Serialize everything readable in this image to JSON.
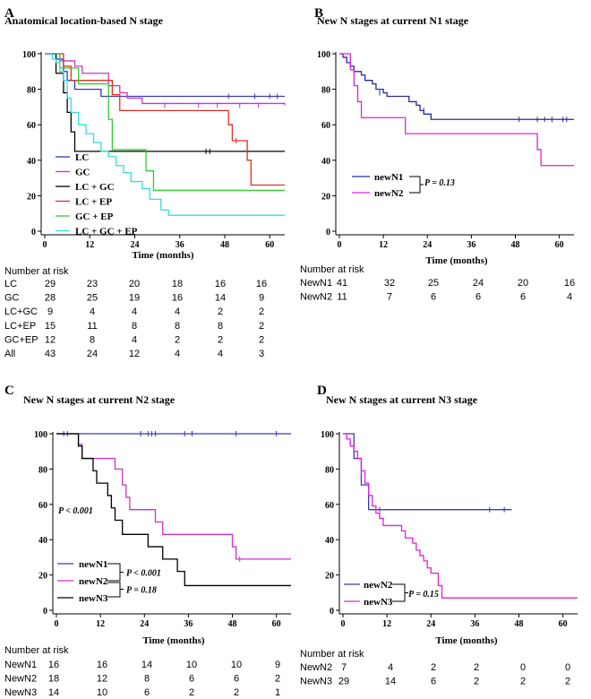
{
  "chart_data": [
    {
      "panel_letter": "A",
      "type": "line",
      "title": "Anatomical location-based N stage",
      "xlabel": "Time (months)",
      "ylabel": "",
      "xlim": [
        0,
        64
      ],
      "ylim": [
        0,
        100
      ],
      "xticks": [
        0,
        12,
        24,
        36,
        48,
        60
      ],
      "yticks": [
        0,
        20,
        40,
        60,
        80,
        100
      ],
      "legend": "bottom-left inside",
      "series": [
        {
          "name": "LC",
          "color": "#3a3ab0",
          "steps": [
            [
              0,
              100
            ],
            [
              3,
              97
            ],
            [
              5,
              90
            ],
            [
              6,
              85
            ],
            [
              8,
              80
            ],
            [
              15,
              76
            ],
            [
              64,
              76
            ]
          ],
          "censor": [
            [
              49,
              76
            ],
            [
              56,
              76
            ],
            [
              60,
              76
            ],
            [
              62,
              76
            ]
          ]
        },
        {
          "name": "GC",
          "color": "#cc33cc",
          "steps": [
            [
              0,
              100
            ],
            [
              4,
              96
            ],
            [
              8,
              93
            ],
            [
              10,
              89
            ],
            [
              17,
              82
            ],
            [
              20,
              78
            ],
            [
              22,
              75
            ],
            [
              26,
              72
            ],
            [
              64,
              71
            ]
          ],
          "censor": [
            [
              32,
              71
            ],
            [
              41,
              71
            ],
            [
              46,
              71
            ],
            [
              52,
              71
            ],
            [
              57,
              71
            ]
          ]
        },
        {
          "name": "LC + GC",
          "color": "#000000",
          "steps": [
            [
              0,
              100
            ],
            [
              3,
              89
            ],
            [
              5,
              78
            ],
            [
              6,
              67
            ],
            [
              7,
              56
            ],
            [
              8,
              45
            ],
            [
              64,
              45
            ]
          ],
          "censor": [
            [
              43,
              45
            ],
            [
              44,
              45
            ]
          ]
        },
        {
          "name": "LC + EP",
          "color": "#e03020",
          "steps": [
            [
              0,
              100
            ],
            [
              5,
              93
            ],
            [
              7,
              85
            ],
            [
              18,
              77
            ],
            [
              20,
              68
            ],
            [
              49,
              60
            ],
            [
              50,
              51
            ],
            [
              53,
              51
            ],
            [
              54,
              40
            ],
            [
              55,
              26
            ],
            [
              64,
              26
            ]
          ],
          "censor": [
            [
              51,
              51
            ]
          ]
        },
        {
          "name": "GC + EP",
          "color": "#33cc33",
          "steps": [
            [
              0,
              100
            ],
            [
              4,
              92
            ],
            [
              9,
              83
            ],
            [
              17,
              63
            ],
            [
              18,
              46
            ],
            [
              27,
              34
            ],
            [
              29,
              23
            ],
            [
              64,
              23
            ]
          ],
          "censor": []
        },
        {
          "name": "LC + GC +  EP",
          "color": "#33dddd",
          "steps": [
            [
              0,
              100
            ],
            [
              2,
              97
            ],
            [
              3,
              95
            ],
            [
              4,
              90
            ],
            [
              5,
              85
            ],
            [
              6,
              75
            ],
            [
              7,
              67
            ],
            [
              9,
              60
            ],
            [
              11,
              55
            ],
            [
              13,
              50
            ],
            [
              15,
              45
            ],
            [
              17,
              42
            ],
            [
              19,
              37
            ],
            [
              21,
              33
            ],
            [
              23,
              28
            ],
            [
              26,
              24
            ],
            [
              28,
              18
            ],
            [
              31,
              12
            ],
            [
              33,
              9
            ],
            [
              64,
              9
            ]
          ],
          "censor": []
        }
      ],
      "risk_table": {
        "header": "Number at risk",
        "times": [
          0,
          12,
          24,
          36,
          48,
          60
        ],
        "rows": [
          {
            "label": "LC",
            "values": [
              "29",
              "23",
              "20",
              "18",
              "16",
              "16"
            ]
          },
          {
            "label": "GC",
            "values": [
              "28",
              "25",
              "19",
              "16",
              "14",
              "9"
            ]
          },
          {
            "label": "LC+GC",
            "values": [
              "9",
              "4",
              "4",
              "4",
              "2",
              "2"
            ]
          },
          {
            "label": "LC+EP",
            "values": [
              "15",
              "11",
              "8",
              "8",
              "8",
              "2"
            ]
          },
          {
            "label": "GC+EP",
            "values": [
              "12",
              "8",
              "4",
              "2",
              "2",
              "2"
            ]
          },
          {
            "label": "All",
            "values": [
              "43",
              "24",
              "12",
              "4",
              "4",
              "3"
            ]
          }
        ]
      },
      "annotations": []
    },
    {
      "panel_letter": "B",
      "type": "line",
      "title": "New N stages at current N1 stage",
      "xlabel": "Time (months)",
      "ylabel": "",
      "xlim": [
        0,
        64
      ],
      "ylim": [
        0,
        100
      ],
      "xticks": [
        0,
        12,
        24,
        36,
        48,
        60
      ],
      "yticks": [
        0,
        20,
        40,
        60,
        80,
        100
      ],
      "legend": "middle-left inside",
      "series": [
        {
          "name": "newN1",
          "color": "#2a2a9a",
          "steps": [
            [
              0,
              100
            ],
            [
              1,
              98
            ],
            [
              2,
              95
            ],
            [
              3,
              93
            ],
            [
              4,
              90
            ],
            [
              6,
              88
            ],
            [
              7,
              85
            ],
            [
              9,
              83
            ],
            [
              10,
              80
            ],
            [
              12,
              78
            ],
            [
              13,
              76
            ],
            [
              19,
              73
            ],
            [
              21,
              71
            ],
            [
              22,
              68
            ],
            [
              23,
              66
            ],
            [
              25,
              63
            ],
            [
              64,
              63
            ]
          ],
          "censor": [
            [
              11,
              78
            ],
            [
              23,
              68
            ],
            [
              49,
              63
            ],
            [
              54,
              63
            ],
            [
              56,
              63
            ],
            [
              58,
              63
            ],
            [
              61,
              63
            ],
            [
              62,
              63
            ]
          ]
        },
        {
          "name": "newN2",
          "color": "#dd22dd",
          "steps": [
            [
              0,
              100
            ],
            [
              3,
              91
            ],
            [
              4,
              82
            ],
            [
              5,
              73
            ],
            [
              6,
              64
            ],
            [
              18,
              55
            ],
            [
              54,
              46
            ],
            [
              55,
              37
            ],
            [
              64,
              37
            ]
          ],
          "censor": []
        }
      ],
      "risk_table": {
        "header": "Number at risk",
        "times": [
          0,
          12,
          24,
          36,
          48,
          60
        ],
        "rows": [
          {
            "label": "NewN1",
            "values": [
              "41",
              "32",
              "25",
              "24",
              "20",
              "16"
            ]
          },
          {
            "label": "NewN2",
            "values": [
              "11",
              "7",
              "6",
              "6",
              "6",
              "4"
            ]
          }
        ]
      },
      "annotations": [
        "P = 0.13"
      ]
    },
    {
      "panel_letter": "C",
      "type": "line",
      "title": "New N stages at current N2 stage",
      "xlabel": "Time (months)",
      "ylabel": "",
      "xlim": [
        0,
        64
      ],
      "ylim": [
        0,
        100
      ],
      "xticks": [
        0,
        12,
        24,
        36,
        48,
        60
      ],
      "yticks": [
        0,
        20,
        40,
        60,
        80,
        100
      ],
      "legend": "bottom-left inside",
      "series": [
        {
          "name": "newN1",
          "color": "#3a3ab0",
          "steps": [
            [
              0,
              100
            ],
            [
              64,
              100
            ]
          ],
          "censor": [
            [
              2,
              100
            ],
            [
              3,
              100
            ],
            [
              23,
              100
            ],
            [
              25,
              100
            ],
            [
              26,
              100
            ],
            [
              27,
              100
            ],
            [
              35,
              100
            ],
            [
              37,
              100
            ],
            [
              49,
              100
            ],
            [
              60,
              100
            ]
          ]
        },
        {
          "name": "newN2",
          "color": "#cc33cc",
          "steps": [
            [
              0,
              100
            ],
            [
              6,
              94
            ],
            [
              7,
              86
            ],
            [
              16,
              80
            ],
            [
              18,
              71
            ],
            [
              19,
              64
            ],
            [
              20,
              57
            ],
            [
              27,
              50
            ],
            [
              29,
              43
            ],
            [
              48,
              36
            ],
            [
              49,
              29
            ],
            [
              64,
              29
            ]
          ],
          "censor": [
            [
              50,
              29
            ]
          ]
        },
        {
          "name": "newN3",
          "color": "#000000",
          "steps": [
            [
              0,
              100
            ],
            [
              6,
              93
            ],
            [
              7,
              86
            ],
            [
              10,
              79
            ],
            [
              11,
              72
            ],
            [
              14,
              65
            ],
            [
              15,
              58
            ],
            [
              16,
              51
            ],
            [
              18,
              43
            ],
            [
              25,
              36
            ],
            [
              29,
              29
            ],
            [
              33,
              22
            ],
            [
              35,
              14
            ],
            [
              64,
              14
            ]
          ],
          "censor": []
        }
      ],
      "risk_table": {
        "header": "Number at risk",
        "times": [
          0,
          12,
          24,
          36,
          48,
          60
        ],
        "rows": [
          {
            "label": "NewN1",
            "values": [
              "16",
              "16",
              "14",
              "10",
              "10",
              "9"
            ]
          },
          {
            "label": "NewN2",
            "values": [
              "18",
              "12",
              "8",
              "6",
              "6",
              "2"
            ]
          },
          {
            "label": "NewN3",
            "values": [
              "14",
              "10",
              "6",
              "2",
              "2",
              "1"
            ]
          }
        ]
      },
      "annotations": [
        "P < 0.001",
        "P < 0.001",
        "P = 0.18"
      ]
    },
    {
      "panel_letter": "D",
      "type": "line",
      "title": "New N stages at current N3 stage",
      "xlabel": "Time (months)",
      "ylabel": "",
      "xlim": [
        0,
        64
      ],
      "ylim": [
        0,
        100
      ],
      "xticks": [
        0,
        12,
        24,
        36,
        48,
        60
      ],
      "yticks": [
        0,
        20,
        40,
        60,
        80,
        100
      ],
      "legend": "bottom-left inside",
      "series": [
        {
          "name": "newN2",
          "color": "#3a3ab0",
          "steps": [
            [
              0,
              100
            ],
            [
              3,
              86
            ],
            [
              5,
              71
            ],
            [
              7,
              57
            ],
            [
              46,
              57
            ]
          ],
          "censor": [
            [
              10,
              57
            ],
            [
              40,
              57
            ],
            [
              44,
              57
            ]
          ]
        },
        {
          "name": "newN3",
          "color": "#dd22dd",
          "steps": [
            [
              0,
              100
            ],
            [
              1,
              97
            ],
            [
              2,
              93
            ],
            [
              3,
              90
            ],
            [
              4,
              86
            ],
            [
              5,
              79
            ],
            [
              6,
              72
            ],
            [
              7,
              65
            ],
            [
              8,
              59
            ],
            [
              9,
              55
            ],
            [
              10,
              52
            ],
            [
              11,
              48
            ],
            [
              16,
              45
            ],
            [
              17,
              41
            ],
            [
              19,
              38
            ],
            [
              20,
              34
            ],
            [
              21,
              31
            ],
            [
              22,
              28
            ],
            [
              23,
              24
            ],
            [
              24,
              21
            ],
            [
              26,
              14
            ],
            [
              27,
              7
            ],
            [
              64,
              7
            ]
          ],
          "censor": [
            [
              5,
              79
            ]
          ]
        }
      ],
      "risk_table": {
        "header": "Number at risk",
        "times": [
          0,
          12,
          24,
          36,
          48,
          60
        ],
        "rows": [
          {
            "label": "NewN2",
            "values": [
              "7",
              "4",
              "2",
              "2",
              "0",
              "0"
            ]
          },
          {
            "label": "NewN3",
            "values": [
              "29",
              "14",
              "6",
              "2",
              "2",
              "2"
            ]
          }
        ]
      },
      "annotations": [
        "P = 0.15"
      ]
    }
  ]
}
